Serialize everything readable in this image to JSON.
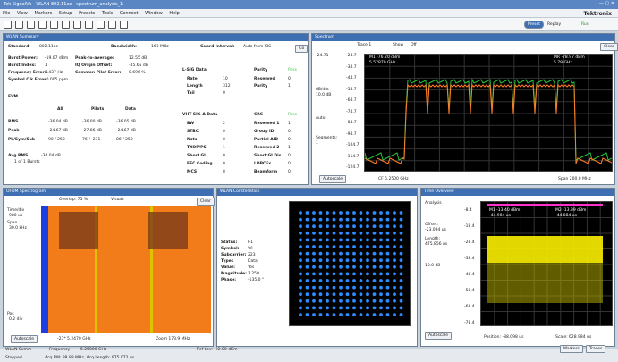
{
  "window": {
    "title": "Tek SignalVu - WLAN 802.11ac - spectrum_analysis_1",
    "brand": "Tektronix"
  },
  "menu": [
    "File",
    "View",
    "Markers",
    "Setup",
    "Presets",
    "Tools",
    "Connect",
    "Window",
    "Help"
  ],
  "toolbar": {
    "preset": "Preset",
    "replay": "Replay",
    "run": "Run"
  },
  "summary": {
    "title": "WLAN Summary",
    "standard_label": "Standard:",
    "standard": "802.11ac",
    "bandwidth_label": "Bandwidth:",
    "bandwidth": "160 MHz",
    "guard_label": "Guard Interval:",
    "guard": "Auto from SIG",
    "metrics": [
      [
        "Burst Power:",
        "-19.07 dBm",
        "Peak-to-average:",
        "12.55 dB"
      ],
      [
        "Burst Index:",
        "1",
        "IQ Origin Offset:",
        "-45.65 dB"
      ],
      [
        "Frequency Error:",
        "1.437 Hz",
        "Common Pilot Error:",
        "0.696 %"
      ],
      [
        "Symbol Clk Error:",
        "-0.005 ppm",
        "",
        ""
      ]
    ],
    "evm_title": "EVM",
    "evm_cols": [
      "All",
      "Pilots",
      "Data"
    ],
    "evm_rows": [
      [
        "RMS",
        "-36.04 dB",
        "-36.00 dB",
        "-36.05 dB"
      ],
      [
        "Peak",
        "-24.67 dB",
        "-27.86 dB",
        "-24.67 dB"
      ],
      [
        "Pk/Sym/Sub",
        "90 / 250",
        "76 / -231",
        "86 / 250"
      ]
    ],
    "avg_label": "Avg RMS",
    "avg_value": "-36.04 dB",
    "bursts": "1 of 1 Bursts",
    "lsig_title": "L-SIG Data",
    "parity_title": "Parity",
    "pass": "Pass",
    "lsig": [
      [
        "Rate",
        "10",
        "Reserved",
        "0"
      ],
      [
        "Length",
        "312",
        "Parity",
        "1"
      ],
      [
        "Tail",
        "0",
        "",
        ""
      ]
    ],
    "vht_title": "VHT SIG-A Data",
    "crc_title": "CRC",
    "vht": [
      [
        "BW",
        "2",
        "Reserved 1",
        "1"
      ],
      [
        "STBC",
        "0",
        "Group ID",
        "0"
      ],
      [
        "Nsts",
        "0",
        "Partial AID",
        "0"
      ],
      [
        "TXOP/PS",
        "1",
        "Reserved 2",
        "1"
      ],
      [
        "Short GI",
        "0",
        "Short GI Dis",
        "0"
      ],
      [
        "FEC Coding",
        "0",
        "LDPCEx",
        "0"
      ],
      [
        "MCS",
        "8",
        "Beamform",
        "0"
      ]
    ]
  },
  "spectrum": {
    "title": "Spectrum",
    "trace": "Trace 1",
    "show": "Show",
    "off": "Off",
    "clear": "Clear",
    "ref": "-24.71",
    "dbdiv_label": "dB/div:",
    "dbdiv": "10.0 dB",
    "rbw": "Auto",
    "segments_label": "Segments:",
    "segments": "1",
    "yticks": [
      "-24.7",
      "-34.7",
      "-44.7",
      "-54.7",
      "-64.7",
      "-74.7",
      "-84.7",
      "-94.7",
      "-104.7",
      "-114.7",
      "-124.7"
    ],
    "m1": "M1 -76.20 dBm",
    "m1b": "5.57870 GHz",
    "mr": "MR -78.97 dBm",
    "mrb": "5.79 GHz",
    "cf": "CF 5.2500 GHz",
    "span": "Span 200.0 MHz",
    "autoscale": "Autoscale"
  },
  "ofdm_spec": {
    "title": "OFDM Spectrogram",
    "overlap": "Overlap: 75 %",
    "visual": "Visual:",
    "time": "Time/div",
    "time_v": "980 us",
    "span": "Span",
    "span_v": "30.0 kHz",
    "clear": "Clear",
    "autoscale": "Autoscale",
    "left": "-23* 5.2470 GHz",
    "right": "Zoom 173.9 MHz",
    "pos": "Pos",
    "pos_v": "0.2 div"
  },
  "constellation": {
    "title": "WLAN Constellation",
    "fields": [
      [
        "Status:",
        "R1"
      ],
      [
        "Symbol:",
        "Y/I"
      ],
      [
        "Subcarrier:",
        "223"
      ],
      [
        "Type:",
        "Data"
      ],
      [
        "Value:",
        "Yes"
      ],
      [
        "Magnitude:",
        "1.259"
      ],
      [
        "Phase:",
        "-135.0 °"
      ]
    ],
    "ref": "Ref Lev: -22.00 dBm"
  },
  "time": {
    "title": "Time Overview",
    "view": "Analysis",
    "offset_label": "Offset:",
    "offset": "-23.094 us",
    "length_label": "Length:",
    "length": "475.856 us",
    "dbdiv": "10.0 dB",
    "m1": "M1 -13.40 dBm",
    "m1b": "-44.904 us",
    "m2": "M2 -13.39 dBm",
    "m2b": "-44.884 us",
    "yticks": [
      "-8.4",
      "-18.4",
      "-28.4",
      "-38.4",
      "-48.4",
      "-58.4",
      "-68.4",
      "-78.4"
    ],
    "autoscale": "Autoscale",
    "pos": "Position: -88.098 us",
    "scale": "Scale: 628.984 us"
  },
  "status": {
    "wlan": "WLAN Summ",
    "freq_label": "Frequency",
    "freq": "5.25000 GHz",
    "reflev": "Ref Lev: -22.00 dBm",
    "markers": "Markers",
    "traces": "Traces",
    "state": "Stopped",
    "acq": "Acq BW: 88.88 MHz, Acq Length: 975.072 us"
  },
  "colors": {
    "accent": "#3f6fb3",
    "trace": "#27c03f",
    "trace2": "#ff7b24",
    "yellow": "#f5ea00",
    "dots": "#2d8cff",
    "orange": "#f27b1a"
  }
}
